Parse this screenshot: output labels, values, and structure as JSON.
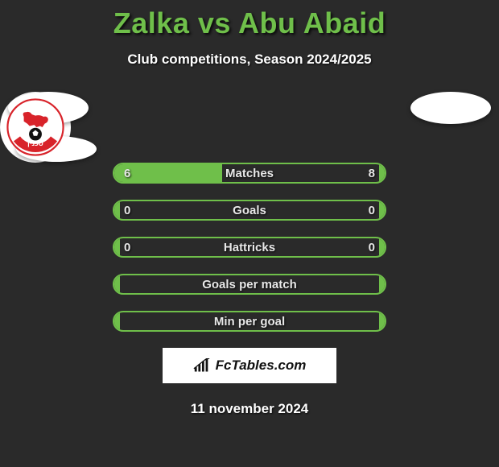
{
  "header": {
    "title": "Zalka vs Abu Abaid",
    "subtitle": "Club competitions, Season 2024/2025"
  },
  "colors": {
    "accent": "#6fbf4a",
    "background": "#2a2a2a",
    "text": "#ffffff",
    "bar_text": "#e8e8e8",
    "badge_bg": "#ffffff",
    "logo_red": "#d8232a"
  },
  "bars": [
    {
      "label": "Matches",
      "left": "6",
      "right": "8",
      "left_fill_pct": 40,
      "right_fill_pct": 2
    },
    {
      "label": "Goals",
      "left": "0",
      "right": "0",
      "left_fill_pct": 2,
      "right_fill_pct": 2
    },
    {
      "label": "Hattricks",
      "left": "0",
      "right": "0",
      "left_fill_pct": 2,
      "right_fill_pct": 2
    },
    {
      "label": "Goals per match",
      "left": "",
      "right": "",
      "left_fill_pct": 2,
      "right_fill_pct": 2
    },
    {
      "label": "Min per goal",
      "left": "",
      "right": "",
      "left_fill_pct": 2,
      "right_fill_pct": 2
    }
  ],
  "footer": {
    "site": "FcTables.com",
    "date": "11 november 2024"
  }
}
